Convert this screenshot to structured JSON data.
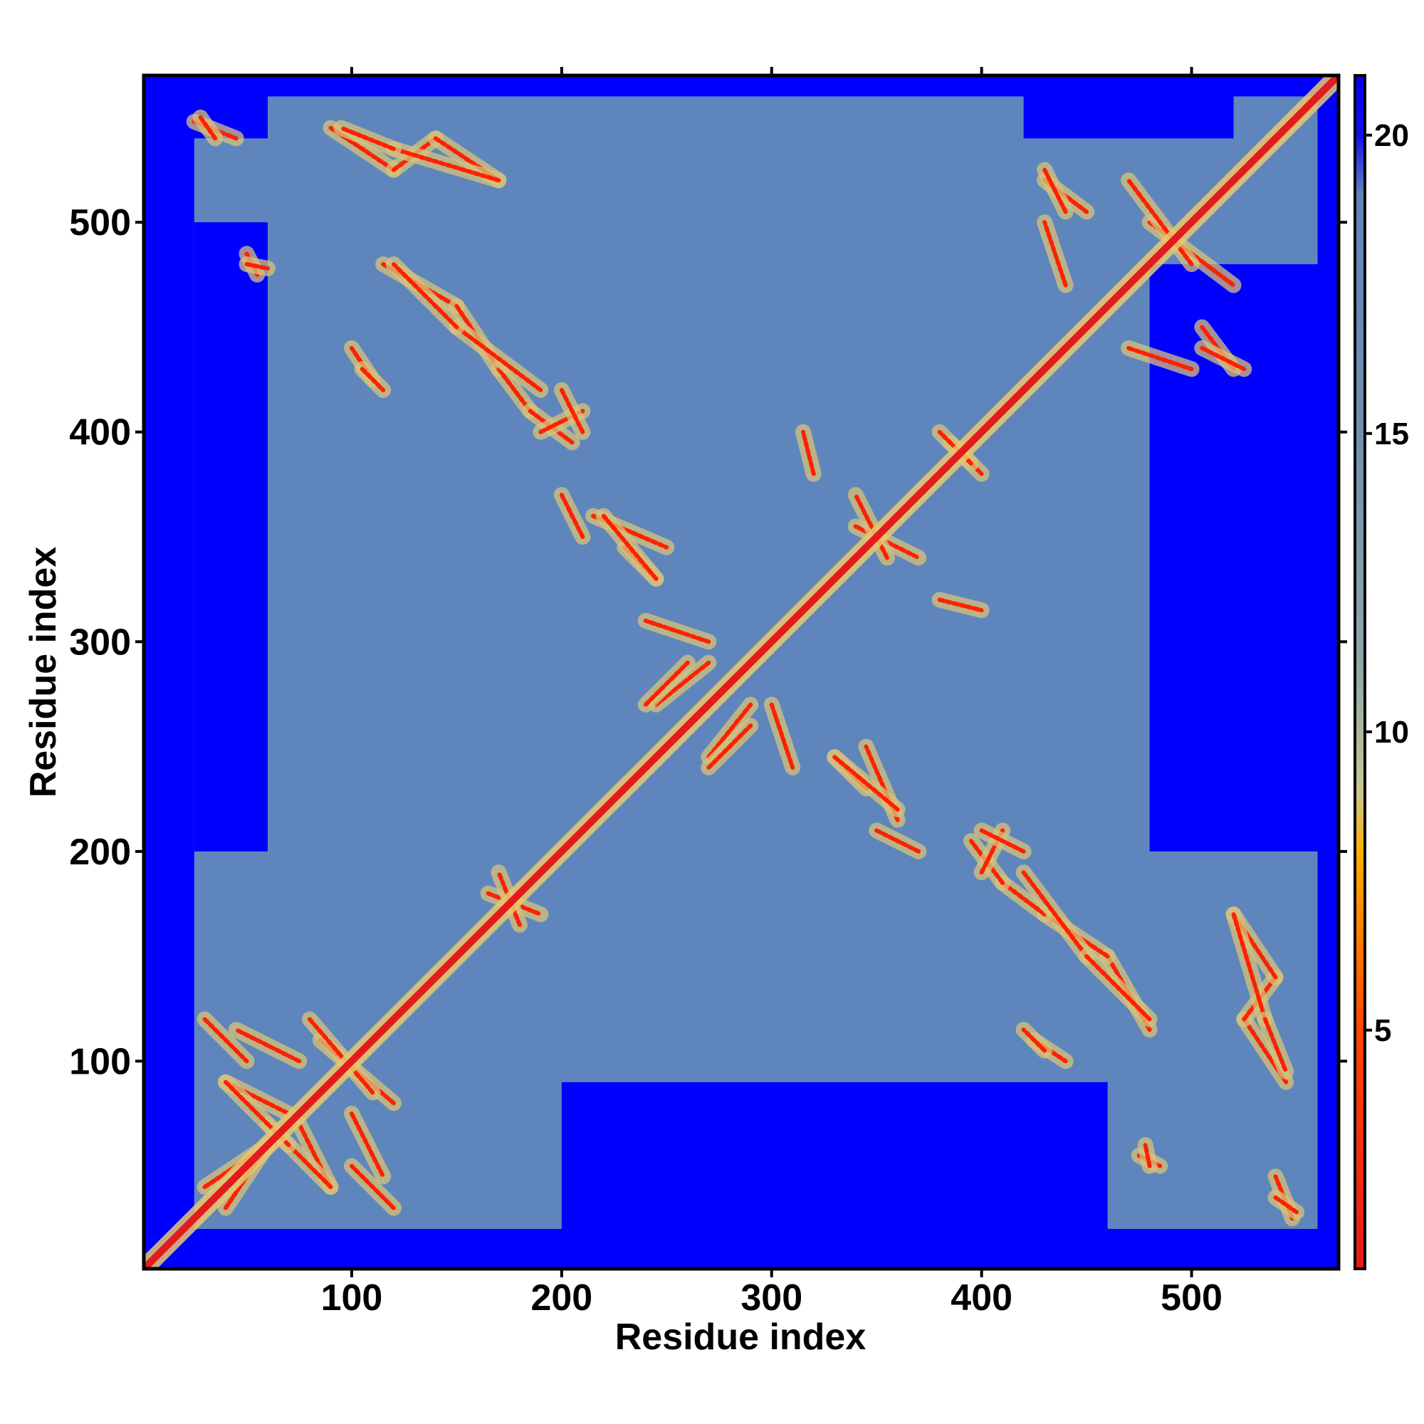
{
  "chart_data": {
    "type": "heatmap",
    "title": "",
    "xlabel": "Residue index",
    "ylabel": "Residue index",
    "n_residues": 570,
    "xlim": [
      1,
      570
    ],
    "ylim": [
      1,
      570
    ],
    "x_ticks": [
      100,
      200,
      300,
      400,
      500
    ],
    "y_ticks": [
      100,
      200,
      300,
      400,
      500
    ],
    "colorbar": {
      "range": [
        1,
        21
      ],
      "ticks": [
        5,
        10,
        15,
        20
      ],
      "colors": [
        {
          "value": 1,
          "color": "#e41a1c"
        },
        {
          "value": 5,
          "color": "#ff4500"
        },
        {
          "value": 7,
          "color": "#ff8c00"
        },
        {
          "value": 8,
          "color": "#ffb000"
        },
        {
          "value": 9,
          "color": "#c8c890"
        },
        {
          "value": 11,
          "color": "#8fa8a8"
        },
        {
          "value": 15,
          "color": "#6f90b0"
        },
        {
          "value": 19,
          "color": "#5f86bc"
        },
        {
          "value": 20,
          "color": "#1010f0"
        },
        {
          "value": 21,
          "color": "#0000ff"
        }
      ]
    },
    "background_color": "#0000ff",
    "contact_color": "#5b86bd",
    "close_contact_color": "#ff2000",
    "diagonal": {
      "x_start": 1,
      "x_end": 570,
      "value": 1
    },
    "contact_regions": [
      {
        "x": [
          20,
          560
        ],
        "y": [
          20,
          560
        ],
        "value": 18
      },
      {
        "x": [
          20,
          130
        ],
        "y": [
          20,
          130
        ],
        "value": 16
      },
      {
        "x": [
          20,
          200
        ],
        "y": [
          380,
          560
        ],
        "value": 16
      },
      {
        "x": [
          380,
          560
        ],
        "y": [
          20,
          200
        ],
        "value": 16
      },
      {
        "x": [
          200,
          420
        ],
        "y": [
          200,
          420
        ],
        "value": 16
      },
      {
        "x": [
          430,
          560
        ],
        "y": [
          430,
          560
        ],
        "value": 16
      }
    ],
    "far_regions": [
      {
        "x": [
          1,
          25
        ],
        "y": [
          1,
          570
        ],
        "value": 21
      },
      {
        "x": [
          1,
          570
        ],
        "y": [
          1,
          15
        ],
        "value": 21
      },
      {
        "x": [
          25,
          60
        ],
        "y": [
          200,
          500
        ],
        "value": 21
      },
      {
        "x": [
          480,
          570
        ],
        "y": [
          200,
          480
        ],
        "value": 21
      },
      {
        "x": [
          200,
          460
        ],
        "y": [
          20,
          90
        ],
        "value": 21
      },
      {
        "x": [
          420,
          520
        ],
        "y": [
          540,
          570
        ],
        "value": 21
      },
      {
        "x": [
          1,
          60
        ],
        "y": [
          540,
          570
        ],
        "value": 21
      }
    ],
    "close_contact_lines": [
      {
        "from": [
          25,
          548
        ],
        "to": [
          45,
          540
        ]
      },
      {
        "from": [
          90,
          545
        ],
        "to": [
          120,
          525
        ]
      },
      {
        "from": [
          120,
          525
        ],
        "to": [
          140,
          540
        ]
      },
      {
        "from": [
          140,
          540
        ],
        "to": [
          170,
          520
        ]
      },
      {
        "from": [
          115,
          480
        ],
        "to": [
          150,
          460
        ]
      },
      {
        "from": [
          150,
          460
        ],
        "to": [
          170,
          430
        ]
      },
      {
        "from": [
          170,
          430
        ],
        "to": [
          185,
          410
        ]
      },
      {
        "from": [
          185,
          410
        ],
        "to": [
          205,
          395
        ]
      },
      {
        "from": [
          190,
          400
        ],
        "to": [
          210,
          410
        ]
      },
      {
        "from": [
          215,
          360
        ],
        "to": [
          250,
          345
        ]
      },
      {
        "from": [
          230,
          345
        ],
        "to": [
          245,
          330
        ]
      },
      {
        "from": [
          245,
          270
        ],
        "to": [
          270,
          290
        ]
      },
      {
        "from": [
          270,
          240
        ],
        "to": [
          290,
          260
        ]
      },
      {
        "from": [
          300,
          270
        ],
        "to": [
          310,
          240
        ]
      },
      {
        "from": [
          330,
          245
        ],
        "to": [
          360,
          220
        ]
      },
      {
        "from": [
          350,
          210
        ],
        "to": [
          370,
          200
        ]
      },
      {
        "from": [
          380,
          320
        ],
        "to": [
          400,
          315
        ]
      },
      {
        "from": [
          340,
          355
        ],
        "to": [
          370,
          340
        ]
      },
      {
        "from": [
          400,
          210
        ],
        "to": [
          420,
          200
        ]
      },
      {
        "from": [
          420,
          190
        ],
        "to": [
          450,
          150
        ]
      },
      {
        "from": [
          450,
          150
        ],
        "to": [
          480,
          120
        ]
      },
      {
        "from": [
          520,
          170
        ],
        "to": [
          535,
          120
        ]
      },
      {
        "from": [
          535,
          120
        ],
        "to": [
          545,
          95
        ]
      },
      {
        "from": [
          425,
          110
        ],
        "to": [
          440,
          100
        ]
      },
      {
        "from": [
          540,
          35
        ],
        "to": [
          550,
          28
        ]
      },
      {
        "from": [
          475,
          55
        ],
        "to": [
          485,
          50
        ]
      },
      {
        "from": [
          30,
          40
        ],
        "to": [
          60,
          60
        ]
      },
      {
        "from": [
          40,
          90
        ],
        "to": [
          70,
          75
        ]
      },
      {
        "from": [
          60,
          70
        ],
        "to": [
          90,
          40
        ]
      },
      {
        "from": [
          100,
          75
        ],
        "to": [
          115,
          45
        ]
      },
      {
        "from": [
          85,
          110
        ],
        "to": [
          120,
          80
        ]
      },
      {
        "from": [
          30,
          120
        ],
        "to": [
          50,
          100
        ]
      },
      {
        "from": [
          165,
          180
        ],
        "to": [
          190,
          170
        ]
      },
      {
        "from": [
          430,
          520
        ],
        "to": [
          450,
          505
        ]
      },
      {
        "from": [
          480,
          500
        ],
        "to": [
          520,
          470
        ]
      },
      {
        "from": [
          505,
          440
        ],
        "to": [
          525,
          430
        ]
      },
      {
        "from": [
          470,
          440
        ],
        "to": [
          500,
          430
        ]
      },
      {
        "from": [
          385,
          395
        ],
        "to": [
          400,
          380
        ]
      },
      {
        "from": [
          50,
          480
        ],
        "to": [
          60,
          478
        ]
      },
      {
        "from": [
          105,
          430
        ],
        "to": [
          115,
          420
        ]
      }
    ]
  }
}
